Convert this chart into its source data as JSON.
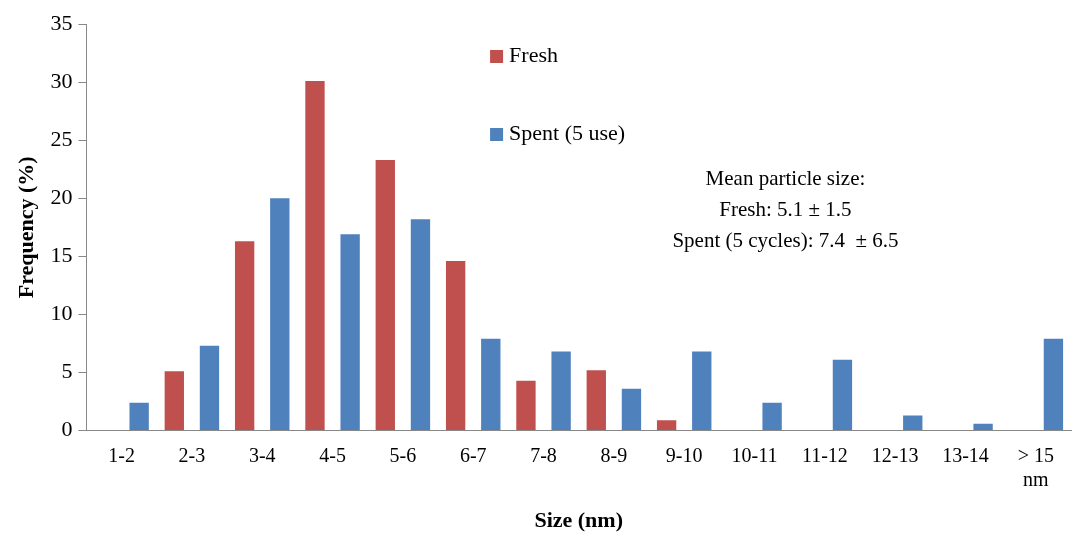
{
  "chart_data": {
    "type": "bar",
    "xlabel": "Size (nm)",
    "ylabel": "Frequency (%)",
    "categories": [
      "1-2",
      "2-3",
      "3-4",
      "4-5",
      "5-6",
      "6-7",
      "7-8",
      "8-9",
      "9-10",
      "10-11",
      "11-12",
      "12-13",
      "13-14",
      "> 15 nm"
    ],
    "series": [
      {
        "name": "Fresh",
        "color": "#c0504d",
        "values": [
          0,
          5.1,
          16.3,
          30.1,
          23.3,
          14.6,
          4.3,
          5.2,
          0.9,
          0,
          0,
          0,
          0,
          0
        ]
      },
      {
        "name": "Spent (5 use)",
        "color": "#4f81bd",
        "values": [
          2.4,
          7.3,
          20,
          16.9,
          18.2,
          7.9,
          6.8,
          3.6,
          6.8,
          2.4,
          6.1,
          1.3,
          0.6,
          7.9
        ]
      }
    ],
    "ylim": [
      0,
      35
    ],
    "yticks": [
      0,
      5,
      10,
      15,
      20,
      25,
      30,
      35
    ],
    "grid": false,
    "legend": "top",
    "annotations": [
      "Mean particle size:\nFresh: 5.1 ± 1.5\nSpent (5 cycles): 7.4  ± 6.5"
    ]
  }
}
